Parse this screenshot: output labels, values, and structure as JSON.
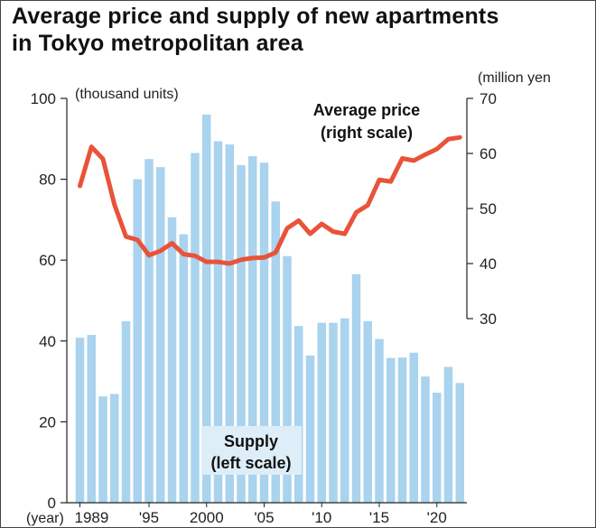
{
  "title_line1": "Average price and supply of new apartments",
  "title_line2": "in Tokyo metropolitan area",
  "chart_data": {
    "type": "bar+line",
    "years": [
      1989,
      1990,
      1991,
      1992,
      1993,
      1994,
      1995,
      1996,
      1997,
      1998,
      1999,
      2000,
      2001,
      2002,
      2003,
      2004,
      2005,
      2006,
      2007,
      2008,
      2009,
      2010,
      2011,
      2012,
      2013,
      2014,
      2015,
      2016,
      2017,
      2018,
      2019,
      2020,
      2021,
      2022
    ],
    "x_tick_labels": [
      {
        "year": 1989,
        "label": "1989"
      },
      {
        "year": 1995,
        "label": "'95"
      },
      {
        "year": 2000,
        "label": "2000"
      },
      {
        "year": 2005,
        "label": "'05"
      },
      {
        "year": 2010,
        "label": "'10"
      },
      {
        "year": 2015,
        "label": "'15"
      },
      {
        "year": 2020,
        "label": "'20"
      }
    ],
    "x_prefix": "(year)",
    "series": [
      {
        "name": "Supply",
        "type": "bar",
        "axis": "left",
        "unit": "thousand units",
        "color": "#a9d3ee",
        "values": [
          40.8,
          41.5,
          26.3,
          26.9,
          44.9,
          80.0,
          85.0,
          83.0,
          70.6,
          66.4,
          86.5,
          96.0,
          89.4,
          88.6,
          83.5,
          85.7,
          84.1,
          74.5,
          61.0,
          43.7,
          36.4,
          44.5,
          44.5,
          45.6,
          56.5,
          44.9,
          40.5,
          35.8,
          35.9,
          37.1,
          31.2,
          27.2,
          33.6,
          29.6
        ]
      },
      {
        "name": "Average price",
        "type": "line",
        "axis": "right",
        "unit": "million yen",
        "color": "#e8533a",
        "values": [
          54.1,
          61.2,
          59.0,
          50.7,
          44.9,
          44.3,
          41.5,
          42.3,
          43.7,
          41.7,
          41.4,
          40.3,
          40.3,
          40.0,
          40.7,
          41.0,
          41.1,
          42.0,
          46.4,
          47.8,
          45.4,
          47.2,
          45.8,
          45.4,
          49.3,
          50.6,
          55.2,
          54.9,
          59.1,
          58.7,
          59.8,
          60.8,
          62.6,
          62.9
        ]
      }
    ],
    "left_axis": {
      "range": [
        0,
        100
      ],
      "ticks": [
        0,
        20,
        40,
        60,
        80,
        100
      ],
      "label": "(thousand units)"
    },
    "right_axis": {
      "range": [
        30,
        70
      ],
      "ticks": [
        30,
        40,
        50,
        60,
        70
      ],
      "label": "(million yen"
    },
    "annotations": {
      "price_line1": "Average price",
      "price_line2": "(right scale)",
      "supply_line1": "Supply",
      "supply_line2": "(left scale)"
    }
  }
}
